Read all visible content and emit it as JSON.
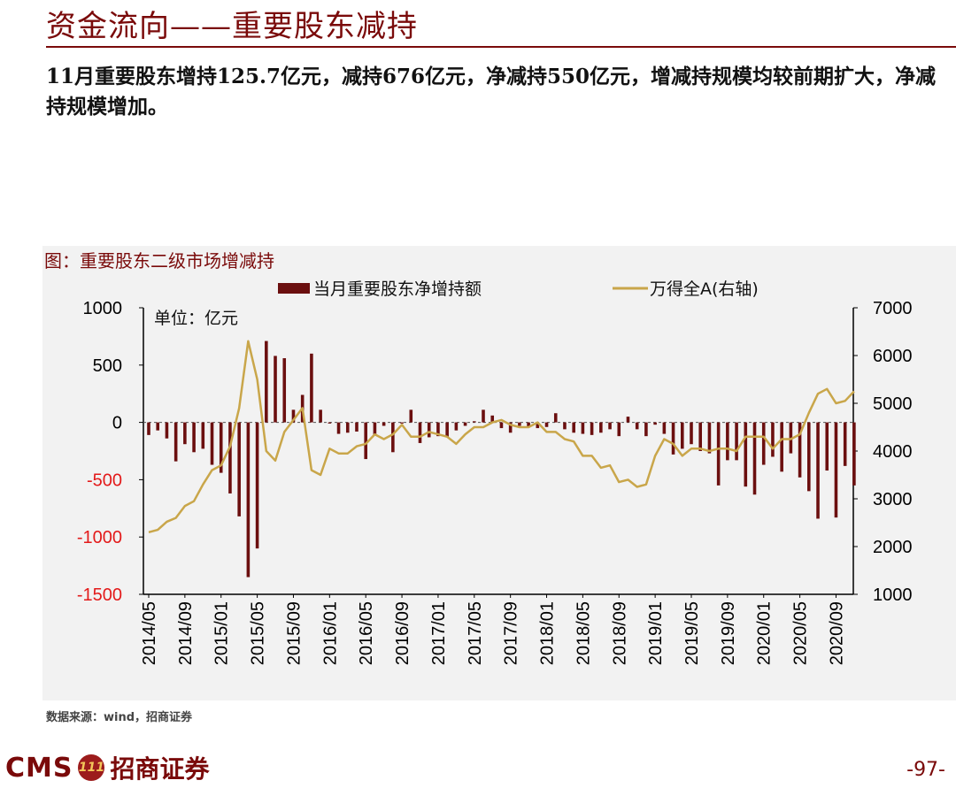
{
  "header": {
    "title": "资金流向——重要股东减持",
    "summary": "11月重要股东增持125.7亿元，减持676亿元，净减持550亿元，增减持规模均较前期扩大，净减持规模增加。"
  },
  "footer": {
    "source": "数据来源：wind，招商证券",
    "logo_text": "CMS",
    "logo_badge": "111",
    "logo_cn": "招商证券",
    "page_number": "-97-"
  },
  "chart_data": {
    "type": "bar+line",
    "title": "图：重要股东二级市场增减持",
    "unit_label": "单位：亿元",
    "legend": {
      "bar": "当月重要股东净增持额",
      "line": "万得全A(右轴)",
      "position": "top"
    },
    "colors": {
      "bar": "#6b0f0f",
      "line": "#c9a64a",
      "title": "#7a0a0a"
    },
    "left_axis": {
      "min": -1500,
      "max": 1000,
      "ticks": [
        "1000",
        "500",
        "0",
        "-500",
        "-1000",
        "-1500"
      ]
    },
    "right_axis": {
      "min": 1000,
      "max": 7000,
      "ticks": [
        "7000",
        "6000",
        "5000",
        "4000",
        "3000",
        "2000",
        "1000"
      ]
    },
    "x_tick_labels": [
      "2014/05",
      "2014/09",
      "2015/01",
      "2015/05",
      "2015/09",
      "2016/01",
      "2016/05",
      "2016/09",
      "2017/01",
      "2017/05",
      "2017/09",
      "2018/01",
      "2018/05",
      "2018/09",
      "2019/01",
      "2019/05",
      "2019/09",
      "2020/01",
      "2020/05",
      "2020/09"
    ],
    "months_start": "2014/05",
    "bar_values": [
      -110,
      -70,
      -140,
      -340,
      -190,
      -260,
      -230,
      -370,
      -440,
      -620,
      -820,
      -1350,
      -1100,
      710,
      580,
      560,
      110,
      240,
      600,
      110,
      -10,
      -100,
      -90,
      -80,
      -320,
      -110,
      -30,
      -260,
      -10,
      110,
      -180,
      -130,
      -120,
      -130,
      -70,
      -30,
      10,
      110,
      60,
      -50,
      -90,
      -30,
      -40,
      -50,
      -40,
      80,
      -60,
      -90,
      -100,
      -110,
      -90,
      -60,
      -120,
      50,
      -60,
      -120,
      -20,
      -100,
      -280,
      -230,
      -190,
      -250,
      -270,
      -550,
      -330,
      -330,
      -560,
      -630,
      -370,
      -300,
      -430,
      -270,
      -480,
      -600,
      -840,
      -420,
      -830,
      -380,
      -550
    ],
    "line_values": [
      2300,
      2350,
      2520,
      2600,
      2850,
      2950,
      3300,
      3600,
      3700,
      4100,
      4900,
      6300,
      5500,
      4000,
      3800,
      4400,
      4650,
      4900,
      3600,
      3500,
      4050,
      3950,
      3950,
      4100,
      4150,
      4350,
      4250,
      4350,
      4550,
      4300,
      4300,
      4400,
      4350,
      4300,
      4150,
      4350,
      4500,
      4500,
      4600,
      4650,
      4550,
      4500,
      4500,
      4600,
      4400,
      4400,
      4250,
      4200,
      3900,
      3900,
      3650,
      3700,
      3350,
      3400,
      3250,
      3300,
      3900,
      4250,
      4150,
      3900,
      4050,
      4050,
      4000,
      4050,
      4050,
      4000,
      4300,
      4300,
      4300,
      4050,
      4250,
      4250,
      4350,
      4800,
      5200,
      5300,
      5000,
      5050,
      5250
    ]
  }
}
